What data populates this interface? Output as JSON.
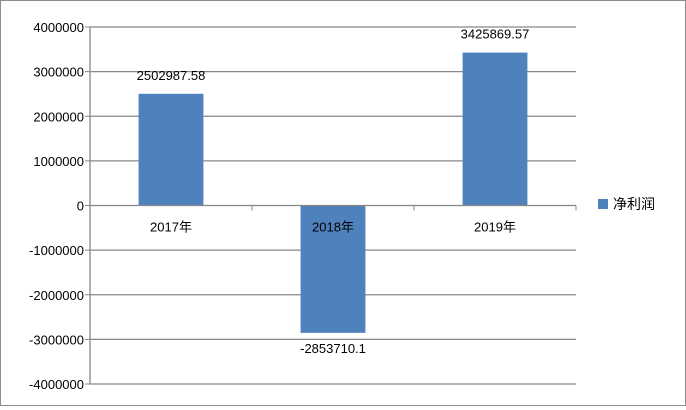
{
  "chart_data": {
    "type": "bar",
    "title": "",
    "xlabel": "",
    "ylabel": "",
    "categories": [
      "2017年",
      "2018年",
      "2019年"
    ],
    "series": [
      {
        "name": "净利润",
        "values": [
          2502987.58,
          -2853710.1,
          3425869.57
        ],
        "labels": [
          "2502987.58",
          "-2853710.1",
          "3425869.57"
        ]
      }
    ],
    "ylim": [
      -4000000,
      4000000
    ],
    "ytick_labels": [
      "4000000",
      "3000000",
      "2000000",
      "1000000",
      "0",
      "-1000000",
      "-2000000",
      "-3000000",
      "-4000000"
    ],
    "grid": true,
    "legend_position": "right"
  },
  "colors": {
    "bar": "#4F81BD",
    "grid": "#878787",
    "axis": "#878787"
  }
}
